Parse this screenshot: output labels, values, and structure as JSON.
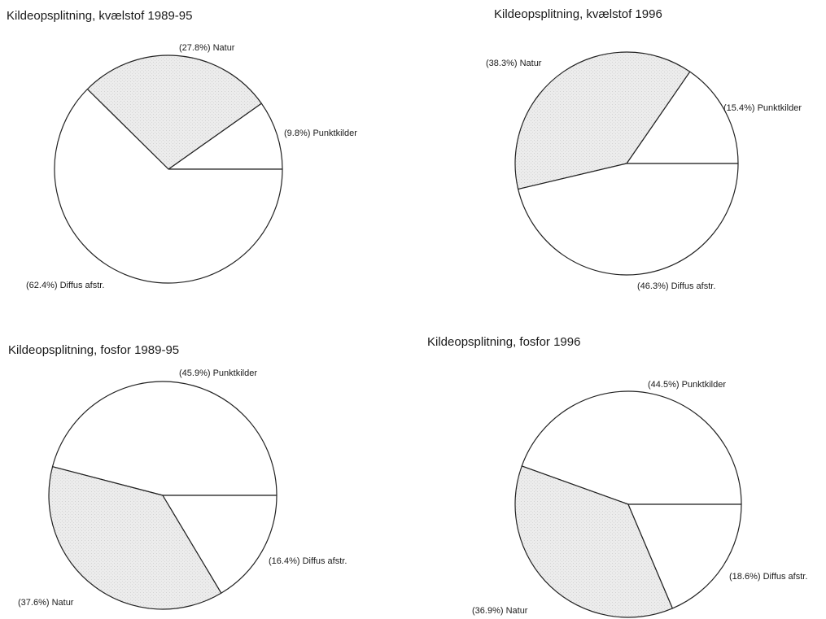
{
  "chart_data": [
    {
      "type": "pie",
      "title": "Kildeopsplitning, kvælstof 1989-95",
      "slices": [
        {
          "label": "Punktkilder",
          "value": 9.8,
          "pct_text": "(9.8%) Punktkilder",
          "fill": "#ffffff"
        },
        {
          "label": "Natur",
          "value": 27.8,
          "pct_text": "(27.8%) Natur",
          "fill": "#e6e6e6"
        },
        {
          "label": "Diffus afstr.",
          "value": 62.4,
          "pct_text": "(62.4%) Diffus afstr.",
          "fill": "#ffffff"
        }
      ]
    },
    {
      "type": "pie",
      "title": "Kildeopsplitning, kvælstof 1996",
      "slices": [
        {
          "label": "Punktkilder",
          "value": 15.4,
          "pct_text": "(15.4%) Punktkilder",
          "fill": "#ffffff"
        },
        {
          "label": "Natur",
          "value": 38.3,
          "pct_text": "(38.3%) Natur",
          "fill": "#e6e6e6"
        },
        {
          "label": "Diffus afstr.",
          "value": 46.3,
          "pct_text": "(46.3%) Diffus afstr.",
          "fill": "#ffffff"
        }
      ]
    },
    {
      "type": "pie",
      "title": "Kildeopsplitning, fosfor 1989-95",
      "slices": [
        {
          "label": "Punktkilder",
          "value": 45.9,
          "pct_text": "(45.9%) Punktkilder",
          "fill": "#ffffff"
        },
        {
          "label": "Natur",
          "value": 37.6,
          "pct_text": "(37.6%) Natur",
          "fill": "#e6e6e6"
        },
        {
          "label": "Diffus afstr.",
          "value": 16.4,
          "pct_text": "(16.4%) Diffus afstr.",
          "fill": "#ffffff"
        }
      ]
    },
    {
      "type": "pie",
      "title": "Kildeopsplitning, fosfor 1996",
      "slices": [
        {
          "label": "Punktkilder",
          "value": 44.5,
          "pct_text": "(44.5%) Punktkilder",
          "fill": "#ffffff"
        },
        {
          "label": "Natur",
          "value": 36.9,
          "pct_text": "(36.9%) Natur",
          "fill": "#e6e6e6"
        },
        {
          "label": "Diffus afstr.",
          "value": 18.6,
          "pct_text": "(18.6%) Diffus afstr.",
          "fill": "#ffffff"
        }
      ]
    }
  ]
}
